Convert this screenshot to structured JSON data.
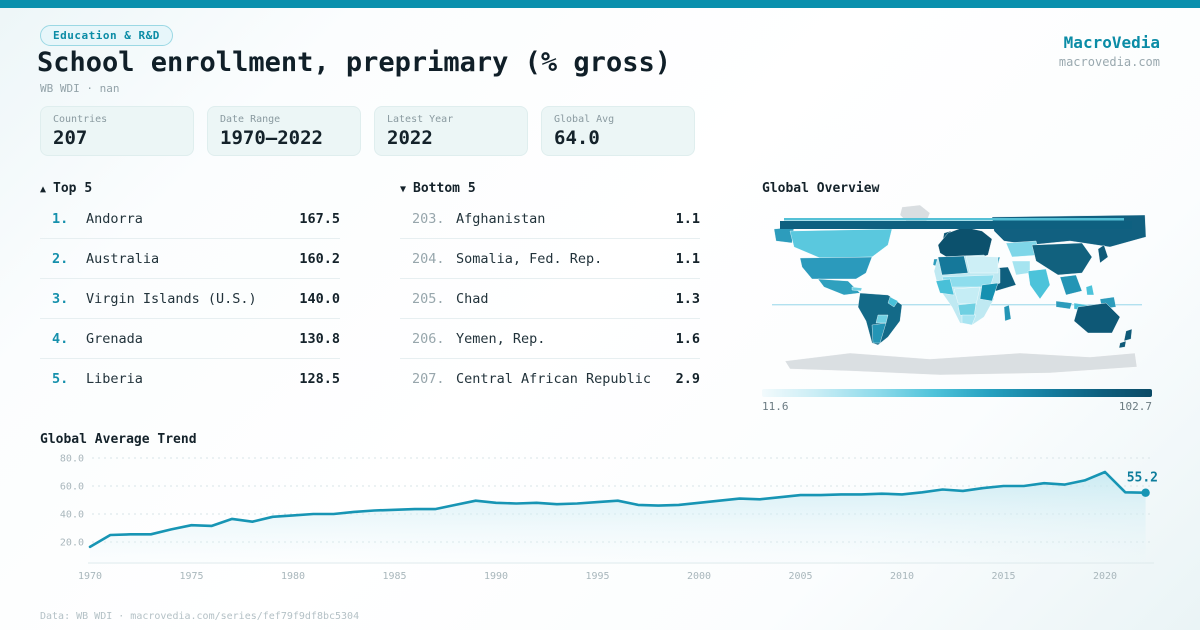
{
  "brand": {
    "name": "MacroVedia",
    "domain": "macrovedia.com"
  },
  "header": {
    "badge": "Education & R&D",
    "title": "School enrollment, preprimary (% gross)",
    "subtitle": "WB WDI · nan"
  },
  "stats": [
    {
      "label": "Countries",
      "value": "207"
    },
    {
      "label": "Date Range",
      "value": "1970—2022"
    },
    {
      "label": "Latest Year",
      "value": "2022"
    },
    {
      "label": "Global Avg",
      "value": "64.0"
    }
  ],
  "rankings": {
    "top": {
      "icon": "▲",
      "title": "Top 5",
      "items": [
        {
          "rank": "1.",
          "name": "Andorra",
          "value": "167.5"
        },
        {
          "rank": "2.",
          "name": "Australia",
          "value": "160.2"
        },
        {
          "rank": "3.",
          "name": "Virgin Islands (U.S.)",
          "value": "140.0"
        },
        {
          "rank": "4.",
          "name": "Grenada",
          "value": "130.8"
        },
        {
          "rank": "5.",
          "name": "Liberia",
          "value": "128.5"
        }
      ]
    },
    "bottom": {
      "icon": "▼",
      "title": "Bottom 5",
      "items": [
        {
          "rank": "203.",
          "name": "Afghanistan",
          "value": "1.1"
        },
        {
          "rank": "204.",
          "name": "Somalia, Fed. Rep.",
          "value": "1.1"
        },
        {
          "rank": "205.",
          "name": "Chad",
          "value": "1.3"
        },
        {
          "rank": "206.",
          "name": "Yemen, Rep.",
          "value": "1.6"
        },
        {
          "rank": "207.",
          "name": "Central African Republic",
          "value": "2.9"
        }
      ]
    }
  },
  "map": {
    "title": "Global Overview",
    "legend_min": "11.6",
    "legend_max": "102.7"
  },
  "chart_data": [
    {
      "type": "line",
      "title": "Global Average Trend",
      "x": [
        1970,
        1971,
        1972,
        1973,
        1974,
        1975,
        1976,
        1977,
        1978,
        1979,
        1980,
        1981,
        1982,
        1983,
        1984,
        1985,
        1986,
        1987,
        1988,
        1989,
        1990,
        1991,
        1992,
        1993,
        1994,
        1995,
        1996,
        1997,
        1998,
        1999,
        2000,
        2001,
        2002,
        2003,
        2004,
        2005,
        2006,
        2007,
        2008,
        2009,
        2010,
        2011,
        2012,
        2013,
        2014,
        2015,
        2016,
        2017,
        2018,
        2019,
        2020,
        2021,
        2022
      ],
      "values": [
        16.5,
        25.0,
        25.5,
        25.5,
        29.0,
        32.0,
        31.5,
        36.5,
        34.5,
        38.0,
        39.0,
        40.0,
        40.0,
        41.5,
        42.5,
        43.0,
        43.5,
        43.5,
        46.5,
        49.5,
        48.0,
        47.5,
        48.0,
        47.0,
        47.5,
        48.5,
        49.5,
        46.5,
        46.0,
        46.5,
        48.0,
        49.5,
        51.0,
        50.5,
        52.0,
        53.5,
        53.5,
        54.0,
        54.0,
        54.5,
        54.0,
        55.5,
        57.5,
        56.5,
        58.5,
        60.0,
        60.0,
        62.0,
        61.0,
        64.0,
        70.0,
        55.5,
        55.2
      ],
      "end_label": "55.2",
      "xlabel": "",
      "ylabel": "",
      "ylim": [
        20,
        80
      ],
      "yticks": [
        20,
        40,
        60,
        80
      ],
      "xticks": [
        1970,
        1975,
        1980,
        1985,
        1990,
        1995,
        2000,
        2005,
        2010,
        2015,
        2020
      ],
      "grid": "dashed",
      "line_color": "#1795b4"
    },
    {
      "type": "heatmap",
      "subtype": "choropleth-world-map",
      "title": "Global Overview",
      "legend_min": 11.6,
      "legend_max": 102.7
    }
  ],
  "footer": {
    "text": "Data: WB WDI · macrovedia.com/series/fef79f9df8bc5304"
  },
  "colors": {
    "accent": "#0a90ad",
    "line": "#1795b4",
    "map_low": "#f2fafc",
    "map_high": "#0b4a66",
    "no_data": "#dadfe2"
  }
}
